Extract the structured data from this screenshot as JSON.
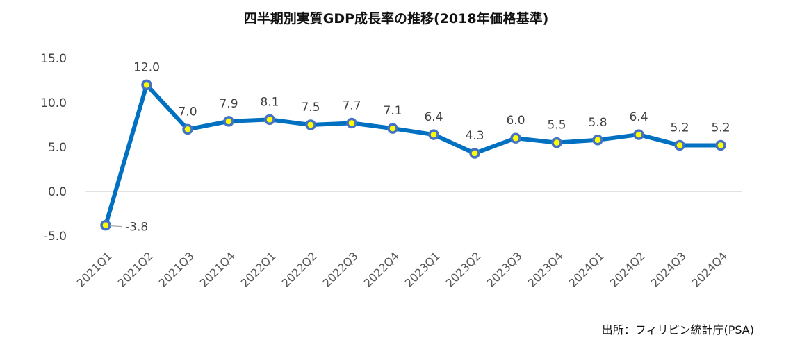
{
  "chart_data": {
    "type": "line",
    "title": "四半期別実質GDP成長率の推移(2018年価格基準)",
    "source": "出所：フィリピン統計庁(PSA)",
    "categories": [
      "2021Q1",
      "2021Q2",
      "2021Q3",
      "2021Q4",
      "2022Q1",
      "2022Q2",
      "2022Q3",
      "2022Q4",
      "2023Q1",
      "2023Q2",
      "2023Q3",
      "2023Q4",
      "2024Q1",
      "2024Q2",
      "2024Q3",
      "2024Q4"
    ],
    "values": [
      -3.8,
      12.0,
      7.0,
      7.9,
      8.1,
      7.5,
      7.7,
      7.1,
      6.4,
      4.3,
      6.0,
      5.5,
      5.8,
      6.4,
      5.2,
      5.2
    ],
    "data_labels": [
      "-3.8",
      "12.0",
      "7.0",
      "7.9",
      "8.1",
      "7.5",
      "7.7",
      "7.1",
      "6.4",
      "4.3",
      "6.0",
      "5.5",
      "5.8",
      "6.4",
      "5.2",
      "5.2"
    ],
    "yticks": [
      15.0,
      10.0,
      5.0,
      0.0,
      -5.0
    ],
    "ytick_labels": [
      "15.0",
      "10.0",
      "5.0",
      "0.0",
      "-5.0"
    ],
    "ylim": [
      -5,
      15
    ],
    "grid": false,
    "colors": {
      "line": "#0070C0",
      "marker_edge": "#4472C4",
      "marker_fill": "#FFFF00",
      "negative_label": "#FF0000",
      "text": "#404040",
      "zero_line": "#D9D9D9"
    }
  }
}
